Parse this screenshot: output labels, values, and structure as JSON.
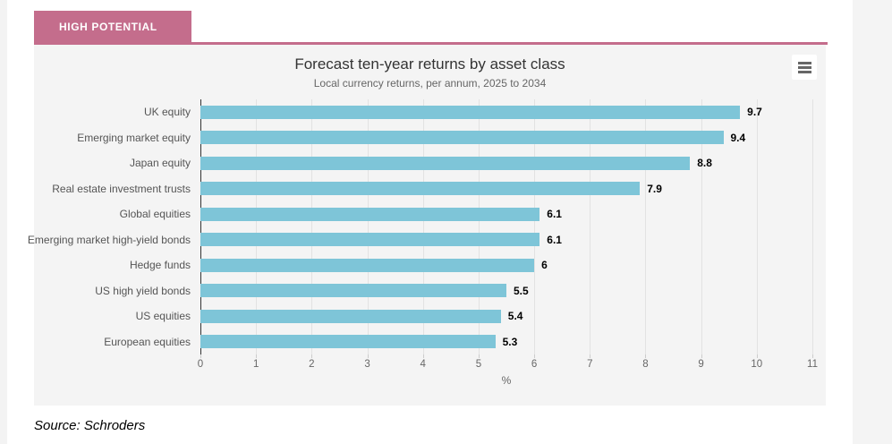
{
  "page": {
    "tab_label": "HIGH POTENTIAL",
    "source_text": "Source: Schroders"
  },
  "chart": {
    "title": "Forecast ten-year returns by asset class",
    "subtitle": "Local currency returns, per annum, 2025 to 2034",
    "menu_icon": "hamburger-icon"
  },
  "chart_data": {
    "type": "bar",
    "orientation": "horizontal",
    "title": "Forecast ten-year returns by asset class",
    "subtitle": "Local currency returns, per annum, 2025 to 2034",
    "categories": [
      "UK equity",
      "Emerging market equity",
      "Japan equity",
      "Real estate investment trusts",
      "Global equities",
      "Emerging market high-yield bonds",
      "Hedge funds",
      "US high yield bonds",
      "US equities",
      "European equities"
    ],
    "values": [
      9.7,
      9.4,
      8.8,
      7.9,
      6.1,
      6.1,
      6,
      5.5,
      5.4,
      5.3
    ],
    "value_labels": [
      "9.7",
      "9.4",
      "8.8",
      "7.9",
      "6.1",
      "6.1",
      "6",
      "5.5",
      "5.4",
      "5.3"
    ],
    "xlabel": "%",
    "ylabel": "",
    "xlim": [
      0,
      11
    ],
    "x_ticks": [
      0,
      1,
      2,
      3,
      4,
      5,
      6,
      7,
      8,
      9,
      10,
      11
    ],
    "grid": true,
    "legend": "none",
    "bar_color": "#7ec5d8",
    "plot_background": "#f4f4f4"
  },
  "colors": {
    "accent_pink": "#c46d8c",
    "bar_blue": "#7ec5d8",
    "panel_bg": "#f4f4f4",
    "title_text": "#333333",
    "muted_text": "#666666"
  }
}
